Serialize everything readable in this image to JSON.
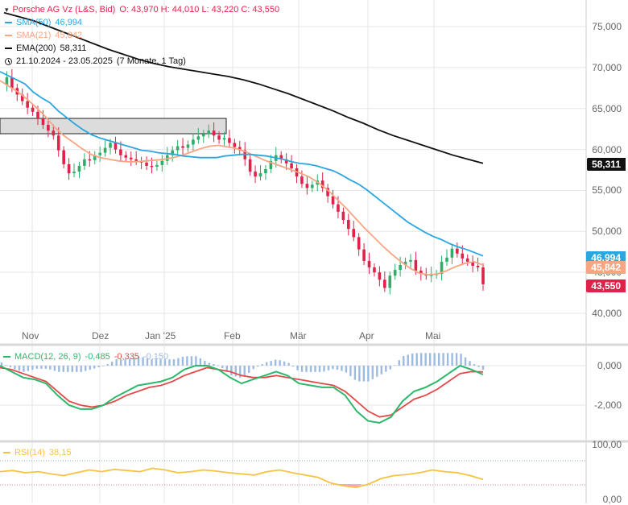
{
  "legend": {
    "main": "Porsche AG Vz (L&S, Bid)",
    "ohlc": "O: 43,970  H: 44,010  L: 43,220  C: 43,550",
    "sma50_label": "SMA(50)",
    "sma50_value": "46,994",
    "sma21_label": "SMA(21)",
    "sma21_value": "45,842",
    "ema200_label": "EMA(200)",
    "ema200_value": "58,311",
    "range": "21.10.2024 - 23.05.2025",
    "range_detail": "(7 Monate, 1 Tag)",
    "macd_label": "MACD(12, 26, 9)",
    "macd_v1": "-0,485",
    "macd_v2": "-0,335",
    "macd_v3": "-0,150",
    "rsi_label": "RSI(14)",
    "rsi_value": "38,15"
  },
  "price_axis": [
    "75,000",
    "70,000",
    "65,000",
    "60,000",
    "55,000",
    "50,000",
    "45,000",
    "40,000"
  ],
  "macd_axis": [
    "0,000",
    "-2,000"
  ],
  "rsi_axis": [
    "100,00",
    "0,00"
  ],
  "x_axis": [
    "Nov",
    "Dez",
    "Jan '25",
    "Feb",
    "Mär",
    "Apr",
    "Mai"
  ],
  "tags": [
    {
      "text": "58,311",
      "bg": "#111111",
      "fg": "#ffffff"
    },
    {
      "text": "46,994",
      "bg": "#2aa7df",
      "fg": "#ffffff"
    },
    {
      "text": "45,842",
      "bg": "#f7a582",
      "fg": "#ffffff"
    },
    {
      "text": "43,550",
      "bg": "#e0224a",
      "fg": "#ffffff"
    }
  ],
  "colors": {
    "up": "#2fae6a",
    "down": "#e0224a",
    "sma50": "#2aa7df",
    "sma21": "#f7a582",
    "ema200": "#111111",
    "macd": "#2cb86a",
    "signal": "#e24a4a",
    "hist": "#9dbbe0",
    "rsi": "#f5c242",
    "rsi_oversold": "#f09ab8",
    "grid": "#e6e6e6"
  },
  "chart_data": {
    "type": "candlestick",
    "instrument": "Porsche AG Vz (L&S, Bid)",
    "period": "21.10.2024 - 23.05.2025",
    "ylim": [
      38000,
      77000
    ],
    "last": {
      "open": 43970,
      "high": 44010,
      "low": 43220,
      "close": 43550
    },
    "resistance_zone": {
      "from_x": 0,
      "to_x": 68,
      "y_low": 62000,
      "y_high": 64000
    },
    "close_series": [
      67900,
      68800,
      67500,
      66700,
      65900,
      65100,
      64600,
      63800,
      63000,
      62300,
      61700,
      59900,
      58200,
      57100,
      57300,
      58000,
      58800,
      58700,
      59300,
      59600,
      60200,
      60800,
      60000,
      59300,
      59000,
      58800,
      58600,
      58400,
      58000,
      57900,
      58100,
      58600,
      59300,
      59900,
      60400,
      60200,
      60600,
      61200,
      61600,
      61900,
      62300,
      61700,
      61200,
      61400,
      60800,
      60300,
      59900,
      58800,
      57300,
      56700,
      57100,
      57600,
      58600,
      59300,
      58800,
      58300,
      57700,
      56700,
      55800,
      55300,
      55700,
      56200,
      55300,
      54300,
      53300,
      52400,
      51400,
      50300,
      49300,
      47800,
      46400,
      45600,
      45000,
      44100,
      43100,
      44600,
      45300,
      45900,
      46300,
      46500,
      45200,
      44800,
      44600,
      44700,
      44800,
      46300,
      46800,
      47900,
      47300,
      46700,
      46300,
      45800,
      45600,
      43550
    ],
    "sma50": [
      69500,
      69000,
      68500,
      68000,
      67000,
      66300,
      65700,
      64700,
      63900,
      63100,
      62400,
      61800,
      61400,
      61100,
      60800,
      60500,
      60200,
      59900,
      59800,
      59600,
      59500,
      59400,
      59200,
      59100,
      59000,
      59000,
      59000,
      59200,
      59300,
      59400,
      59400,
      59300,
      59200,
      59000,
      58800,
      58500,
      58300,
      58200,
      58000,
      57700,
      57400,
      56900,
      56300,
      55800,
      55100,
      54300,
      53500,
      52700,
      51900,
      51100,
      50500,
      49900,
      49400,
      49000,
      48500,
      48100,
      47800,
      47400,
      47000
    ],
    "sma21": [
      68400,
      67700,
      67000,
      66100,
      65100,
      64000,
      62700,
      61700,
      60900,
      60100,
      59400,
      59000,
      58800,
      58600,
      58500,
      58500,
      58600,
      58700,
      58800,
      59000,
      59300,
      59700,
      60100,
      60400,
      60500,
      60300,
      60100,
      59700,
      59200,
      58700,
      58300,
      57900,
      57500,
      57100,
      56600,
      55900,
      55000,
      53900,
      52800,
      51600,
      50400,
      49300,
      48200,
      47200,
      46300,
      45500,
      44900,
      44700,
      44800,
      45200,
      45700,
      46100,
      46300,
      45900
    ],
    "ema200": [
      76700,
      76200,
      75700,
      75000,
      74300,
      73600,
      72900,
      72200,
      71600,
      71000,
      70500,
      70100,
      69800,
      69500,
      69200,
      68900,
      68500,
      68000,
      67400,
      66800,
      66100,
      65400,
      64700,
      63900,
      63200,
      62400,
      61700,
      61100,
      60500,
      59900,
      59300,
      58800,
      58311
    ],
    "macd": [
      0,
      -300,
      -600,
      -700,
      -900,
      -1500,
      -2000,
      -2200,
      -2200,
      -2000,
      -1600,
      -1300,
      -1000,
      -900,
      -800,
      -600,
      -200,
      0,
      0,
      -200,
      -600,
      -900,
      -700,
      -500,
      -300,
      -500,
      -900,
      -1000,
      -1100,
      -1100,
      -1500,
      -2300,
      -2800,
      -2900,
      -2600,
      -1800,
      -1300,
      -1100,
      -800,
      -400,
      0,
      -200,
      -450
    ],
    "macd_signal": [
      -100,
      -200,
      -400,
      -600,
      -800,
      -1300,
      -1800,
      -2000,
      -2100,
      -2000,
      -1800,
      -1500,
      -1300,
      -1100,
      -1000,
      -800,
      -500,
      -300,
      -100,
      -200,
      -300,
      -500,
      -600,
      -600,
      -500,
      -600,
      -700,
      -800,
      -900,
      -1000,
      -1300,
      -1800,
      -2300,
      -2600,
      -2500,
      -2100,
      -1700,
      -1500,
      -1200,
      -800,
      -400,
      -300,
      -320
    ],
    "rsi": [
      52,
      54,
      50,
      52,
      48,
      45,
      50,
      55,
      52,
      56,
      54,
      52,
      58,
      55,
      50,
      52,
      55,
      53,
      50,
      48,
      46,
      52,
      55,
      50,
      46,
      42,
      32,
      27,
      24,
      30,
      40,
      45,
      47,
      50,
      55,
      52,
      50,
      45,
      38
    ]
  }
}
